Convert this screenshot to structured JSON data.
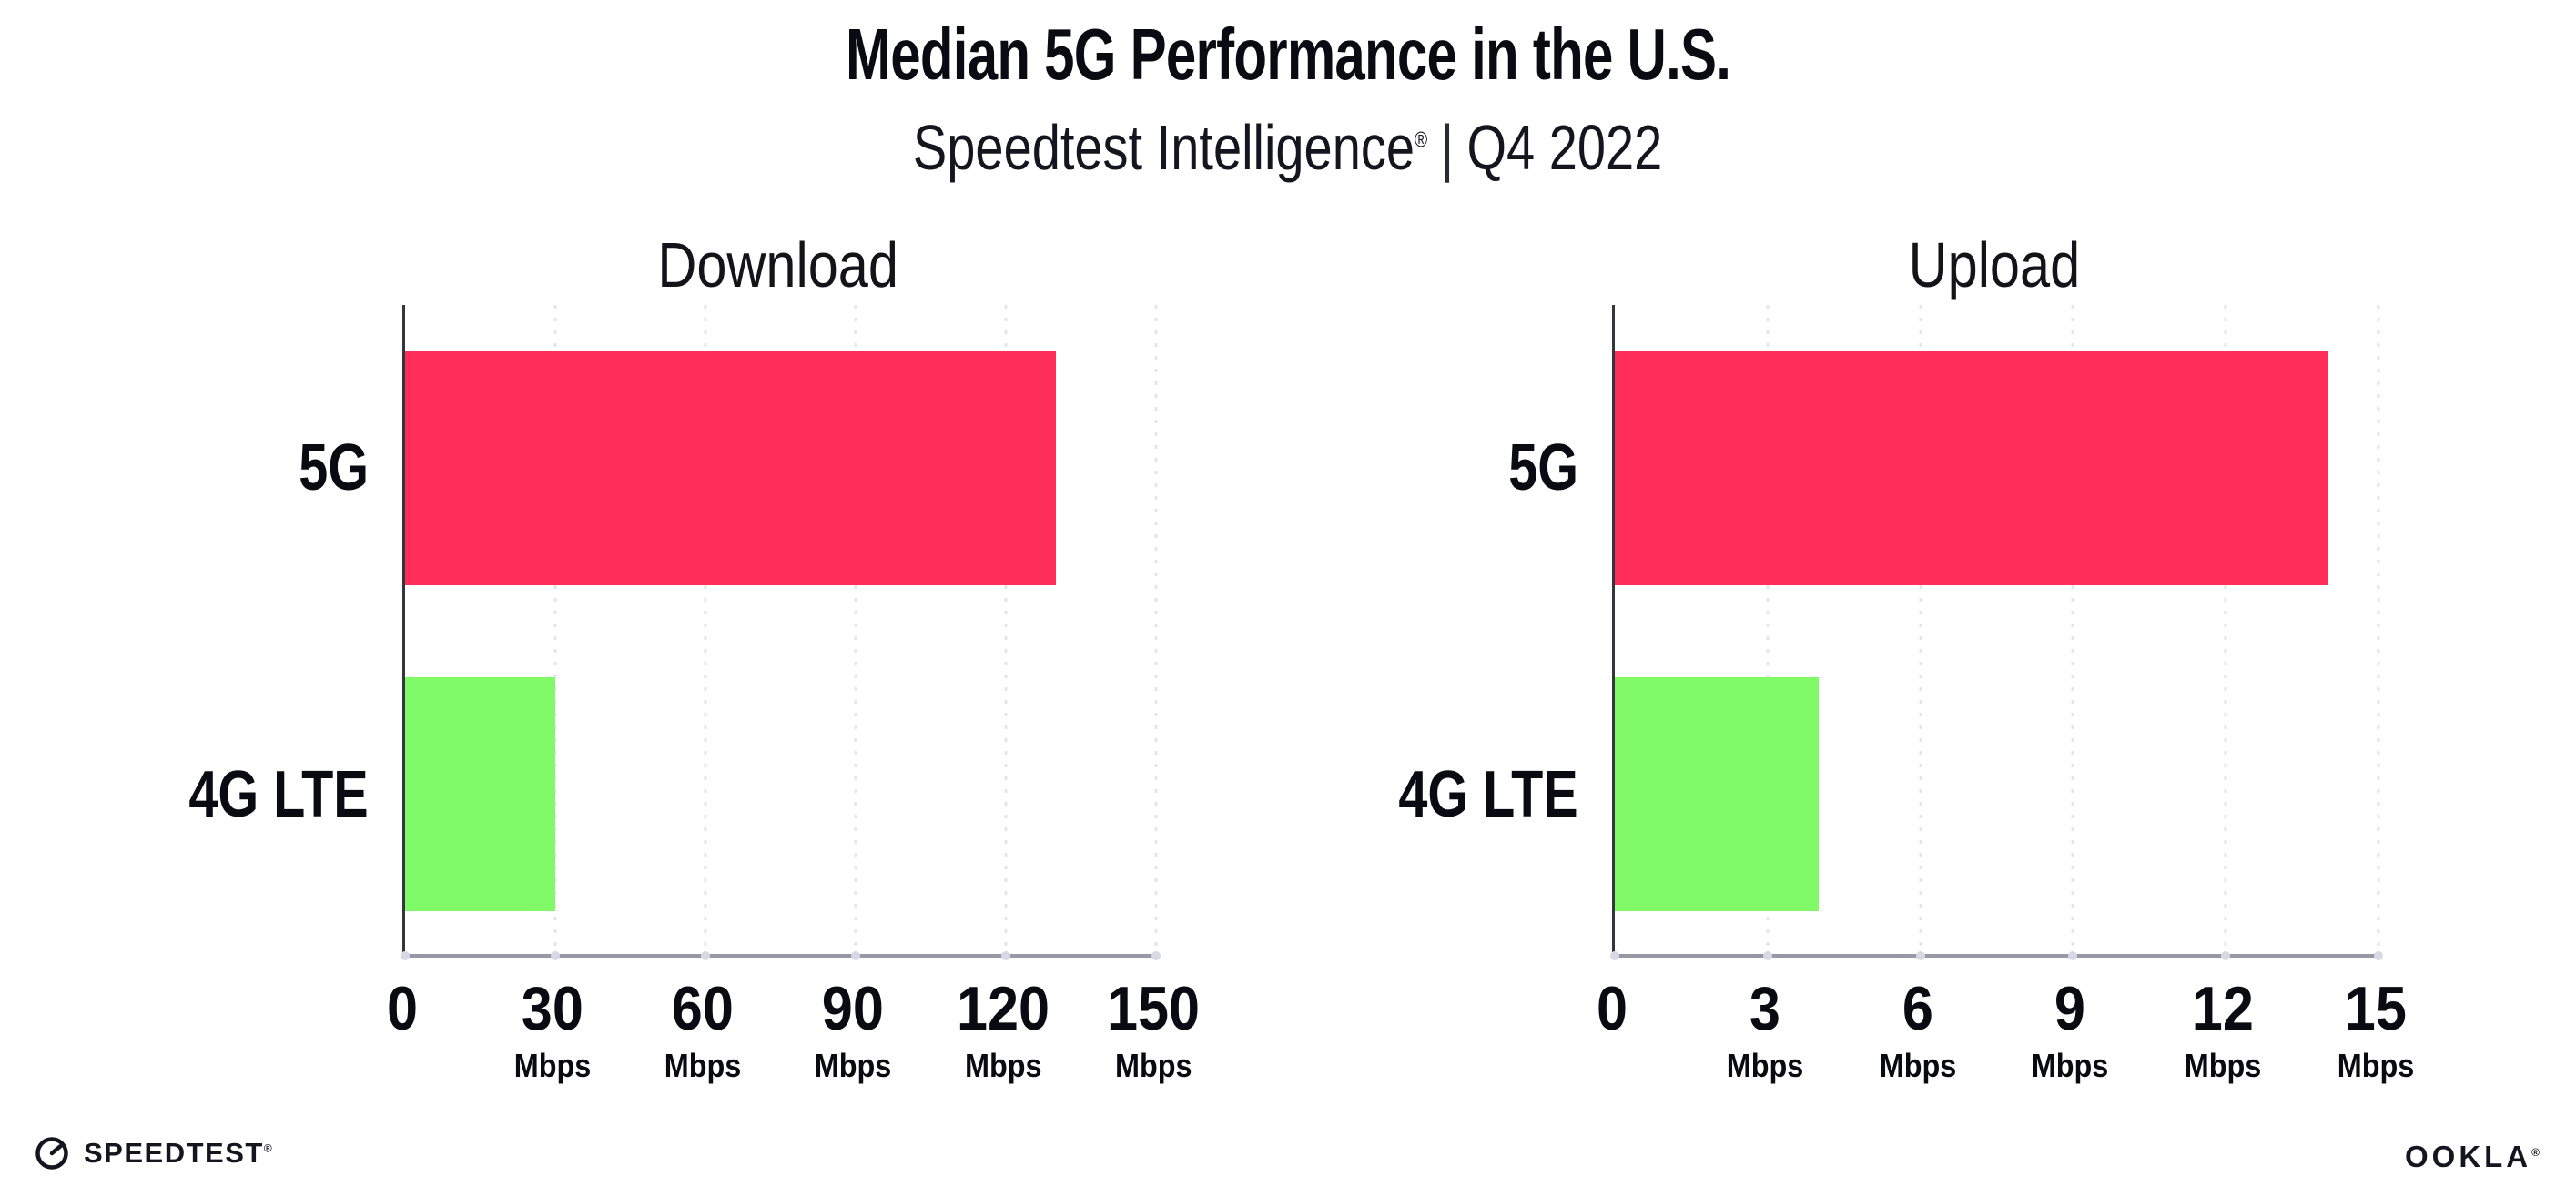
{
  "header": {
    "title": "Median 5G Performance in the U.S.",
    "subtitle_brand": "Speedtest Intelligence",
    "subtitle_reg": "®",
    "subtitle_separator": "|",
    "subtitle_period": "Q4 2022"
  },
  "colors": {
    "bar_5g": "#FF2D5A",
    "bar_4g_lte": "#80FA66",
    "x_axis_line": "#9898A6",
    "y_axis_line": "#35353F",
    "gridline": "#E4E4EF",
    "text": "#0A0A12"
  },
  "chart_data": [
    {
      "type": "bar",
      "orientation": "horizontal",
      "title": "Download",
      "categories": [
        "5G",
        "4G LTE"
      ],
      "values": [
        130,
        30
      ],
      "unit": "Mbps",
      "xlim": [
        0,
        150
      ],
      "xticks": [
        0,
        30,
        60,
        90,
        120,
        150
      ],
      "bar_colors": [
        "#FF2D5A",
        "#80FA66"
      ],
      "grid": "dotted-vertical",
      "legend": "none"
    },
    {
      "type": "bar",
      "orientation": "horizontal",
      "title": "Upload",
      "categories": [
        "5G",
        "4G LTE"
      ],
      "values": [
        14,
        4
      ],
      "unit": "Mbps",
      "xlim": [
        0,
        15
      ],
      "xticks": [
        0,
        3,
        6,
        9,
        12,
        15
      ],
      "bar_colors": [
        "#FF2D5A",
        "#80FA66"
      ],
      "grid": "dotted-vertical",
      "legend": "none"
    }
  ],
  "footer": {
    "speedtest_label": "SPEEDTEST",
    "speedtest_mark": "®",
    "ookla_label": "OOKLA",
    "ookla_mark": "®"
  }
}
